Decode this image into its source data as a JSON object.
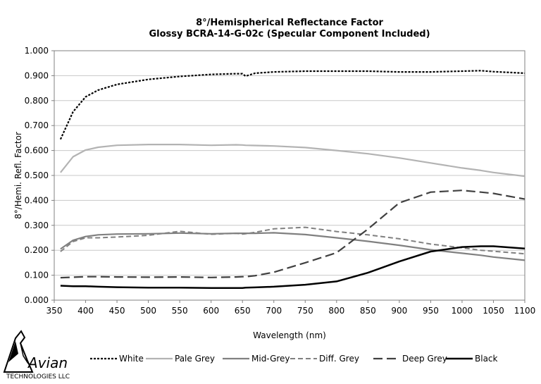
{
  "chart_data": {
    "type": "line",
    "title": "8°/Hemispherical Reflectance Factor",
    "subtitle": "Glossy BCRA-14-G-02c (Specular Component Included)",
    "xlabel": "Wavelength (nm)",
    "ylabel": "8°/Hemi. Refl. Factor",
    "xlim": [
      350,
      1100
    ],
    "ylim": [
      0,
      1
    ],
    "xticks": [
      350,
      400,
      450,
      500,
      550,
      600,
      650,
      700,
      750,
      800,
      850,
      900,
      950,
      1000,
      1050,
      1100
    ],
    "xtick_labels": [
      "350",
      "400",
      "450",
      "500",
      "550",
      "600",
      "650",
      "700",
      "750",
      "800",
      "850",
      "900",
      "950",
      "1000",
      "1050",
      "1100"
    ],
    "yticks": [
      0,
      0.1,
      0.2,
      0.3,
      0.4,
      0.5,
      0.6,
      0.7,
      0.8,
      0.9,
      1.0
    ],
    "ytick_labels": [
      "0.000",
      "0.100",
      "0.200",
      "0.300",
      "0.400",
      "0.500",
      "0.600",
      "0.700",
      "0.800",
      "0.900",
      "1.000"
    ],
    "grid": "horizontal",
    "legend_position": "bottom",
    "x": [
      360,
      380,
      400,
      420,
      450,
      500,
      550,
      600,
      640,
      650,
      655,
      670,
      700,
      750,
      800,
      850,
      900,
      950,
      1000,
      1030,
      1050,
      1100
    ],
    "series": [
      {
        "name": "White",
        "color": "#000000",
        "dash": "3,2",
        "width": 2.2,
        "values": [
          0.645,
          0.755,
          0.815,
          0.842,
          0.865,
          0.885,
          0.897,
          0.905,
          0.908,
          0.908,
          0.898,
          0.91,
          0.915,
          0.918,
          0.918,
          0.918,
          0.915,
          0.915,
          0.918,
          0.92,
          0.916,
          0.91
        ]
      },
      {
        "name": "Pale Grey",
        "color": "#b3b3b3",
        "dash": "",
        "width": 2.2,
        "values": [
          0.512,
          0.575,
          0.602,
          0.613,
          0.621,
          0.624,
          0.624,
          0.621,
          0.623,
          0.622,
          0.621,
          0.62,
          0.618,
          0.612,
          0.6,
          0.587,
          0.57,
          0.55,
          0.53,
          0.52,
          0.512,
          0.497
        ]
      },
      {
        "name": "Mid-Grey",
        "color": "#808080",
        "dash": "",
        "width": 2.2,
        "values": [
          0.205,
          0.24,
          0.255,
          0.262,
          0.265,
          0.266,
          0.269,
          0.266,
          0.268,
          0.268,
          0.268,
          0.268,
          0.27,
          0.263,
          0.25,
          0.236,
          0.22,
          0.202,
          0.188,
          0.18,
          0.173,
          0.16
        ]
      },
      {
        "name": "Diff. Grey",
        "color": "#808080",
        "dash": "7,4",
        "width": 2.0,
        "values": [
          0.195,
          0.235,
          0.25,
          0.25,
          0.253,
          0.26,
          0.276,
          0.264,
          0.268,
          0.265,
          0.266,
          0.272,
          0.286,
          0.292,
          0.275,
          0.262,
          0.246,
          0.225,
          0.21,
          0.2,
          0.196,
          0.186
        ]
      },
      {
        "name": "Deep Grey",
        "color": "#404040",
        "dash": "13,6",
        "width": 2.2,
        "values": [
          0.09,
          0.092,
          0.094,
          0.094,
          0.093,
          0.092,
          0.093,
          0.091,
          0.093,
          0.094,
          0.094,
          0.098,
          0.112,
          0.15,
          0.19,
          0.285,
          0.39,
          0.433,
          0.44,
          0.433,
          0.428,
          0.405
        ]
      },
      {
        "name": "Black",
        "color": "#000000",
        "dash": "",
        "width": 2.5,
        "values": [
          0.058,
          0.056,
          0.056,
          0.054,
          0.052,
          0.05,
          0.05,
          0.049,
          0.049,
          0.049,
          0.05,
          0.051,
          0.054,
          0.062,
          0.075,
          0.11,
          0.155,
          0.195,
          0.213,
          0.216,
          0.216,
          0.207
        ]
      }
    ]
  },
  "logo": {
    "name": "Avian",
    "subtext": "TECHNOLOGIES LLC"
  }
}
